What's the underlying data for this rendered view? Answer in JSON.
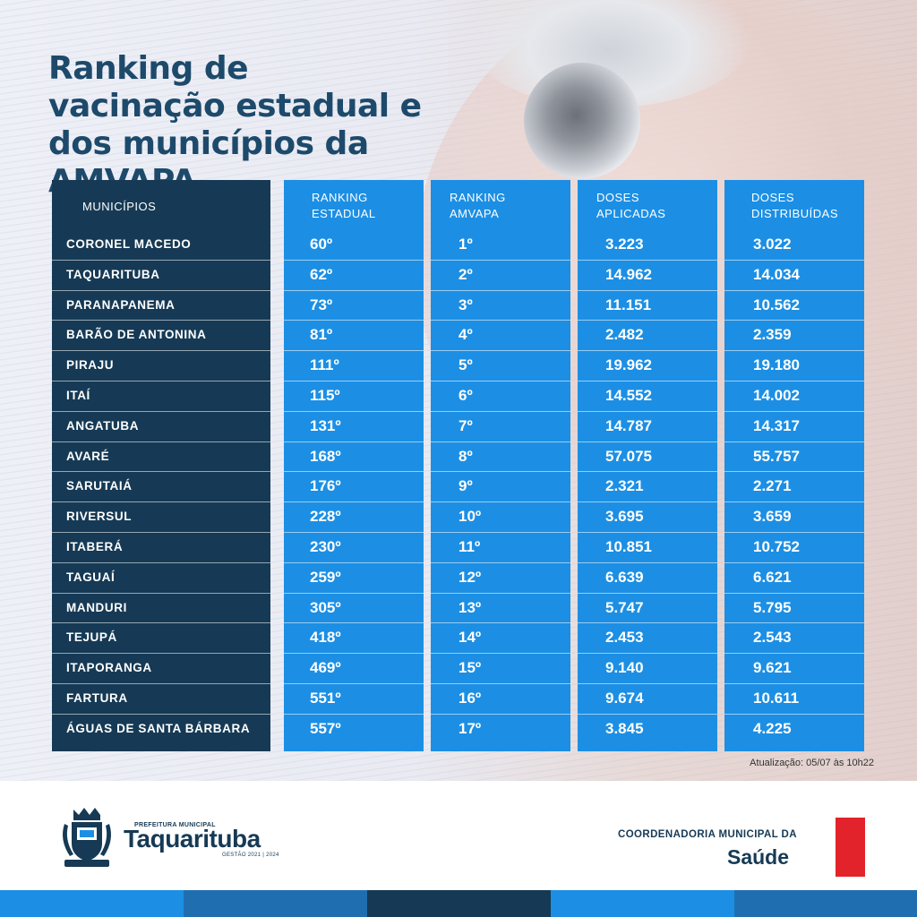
{
  "title_lines": [
    "Ranking de",
    "vacinação estadual e",
    "dos municípios da AMVAPA"
  ],
  "headers": {
    "municipios": "MUNICÍPIOS",
    "ranking_estadual": [
      "RANKING",
      "ESTADUAL"
    ],
    "ranking_amvapa": [
      "RANKING",
      "AMVAPA"
    ],
    "doses_aplicadas": [
      "DOSES",
      "APLICADAS"
    ],
    "doses_distribuidas": [
      "DOSES",
      "DISTRIBUÍDAS"
    ]
  },
  "rows": [
    {
      "municipio": "CORONEL MACEDO",
      "estadual": "60º",
      "amvapa": "1º",
      "aplicadas": "3.223",
      "distribuidas": "3.022"
    },
    {
      "municipio": "TAQUARITUBA",
      "estadual": "62º",
      "amvapa": "2º",
      "aplicadas": "14.962",
      "distribuidas": "14.034"
    },
    {
      "municipio": "PARANAPANEMA",
      "estadual": "73º",
      "amvapa": "3º",
      "aplicadas": "11.151",
      "distribuidas": "10.562"
    },
    {
      "municipio": "BARÃO DE ANTONINA",
      "estadual": "81º",
      "amvapa": "4º",
      "aplicadas": "2.482",
      "distribuidas": "2.359"
    },
    {
      "municipio": "PIRAJU",
      "estadual": "111º",
      "amvapa": "5º",
      "aplicadas": "19.962",
      "distribuidas": "19.180"
    },
    {
      "municipio": "ITAÍ",
      "estadual": "115º",
      "amvapa": "6º",
      "aplicadas": "14.552",
      "distribuidas": "14.002"
    },
    {
      "municipio": "ANGATUBA",
      "estadual": "131º",
      "amvapa": "7º",
      "aplicadas": "14.787",
      "distribuidas": "14.317"
    },
    {
      "municipio": "AVARÉ",
      "estadual": "168º",
      "amvapa": "8º",
      "aplicadas": "57.075",
      "distribuidas": "55.757"
    },
    {
      "municipio": "SARUTAIÁ",
      "estadual": "176º",
      "amvapa": "9º",
      "aplicadas": "2.321",
      "distribuidas": "2.271"
    },
    {
      "municipio": "RIVERSUL",
      "estadual": "228º",
      "amvapa": "10º",
      "aplicadas": "3.695",
      "distribuidas": "3.659"
    },
    {
      "municipio": "ITABERÁ",
      "estadual": "230º",
      "amvapa": "11º",
      "aplicadas": "10.851",
      "distribuidas": "10.752"
    },
    {
      "municipio": "TAGUAÍ",
      "estadual": "259º",
      "amvapa": "12º",
      "aplicadas": "6.639",
      "distribuidas": "6.621"
    },
    {
      "municipio": "MANDURI",
      "estadual": "305º",
      "amvapa": "13º",
      "aplicadas": "5.747",
      "distribuidas": "5.795"
    },
    {
      "municipio": "TEJUPÁ",
      "estadual": "418º",
      "amvapa": "14º",
      "aplicadas": "2.453",
      "distribuidas": "2.543"
    },
    {
      "municipio": "ITAPORANGA",
      "estadual": "469º",
      "amvapa": "15º",
      "aplicadas": "9.140",
      "distribuidas": "9.621"
    },
    {
      "municipio": "FARTURA",
      "estadual": "551º",
      "amvapa": "16º",
      "aplicadas": "9.674",
      "distribuidas": "10.611"
    },
    {
      "municipio": "ÁGUAS DE SANTA BÁRBARA",
      "estadual": "557º",
      "amvapa": "17º",
      "aplicadas": "3.845",
      "distribuidas": "4.225"
    }
  ],
  "update_text": "Atualização: 05/07 às 10h22",
  "footer": {
    "logo_prefeitura": "PREFEITURA MUNICIPAL",
    "logo_name": "Taquarituba",
    "logo_gestao": "GESTÃO 2021 | 2024",
    "logo_icon": "coat-of-arms-icon",
    "coordenadoria": "COORDENADORIA MUNICIPAL DA",
    "saude": "Saúde"
  },
  "colors": {
    "dark_blue": "#163a55",
    "light_blue": "#1c8fe4",
    "red": "#e3232b"
  }
}
